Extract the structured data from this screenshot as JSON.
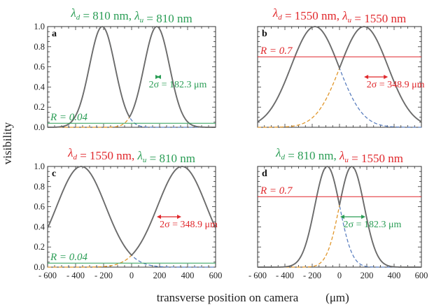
{
  "figure": {
    "ylabel": "visibility",
    "xlabel": "transverse position on camera",
    "xunit": "(μm)",
    "colors": {
      "green": "#2a9d55",
      "red": "#e0272b",
      "blue": "#5b7fbf",
      "orange": "#e0962a",
      "gray": "#6b6b6b"
    }
  },
  "chart_data": [
    {
      "type": "line",
      "panel": "a",
      "title_parts": [
        {
          "text": "λ",
          "sub": "d",
          "color": "green"
        },
        {
          "text": " = 810 nm, ",
          "color": "green"
        },
        {
          "text": "λ",
          "sub": "u",
          "color": "green"
        },
        {
          "text": " = 810 nm",
          "color": "green"
        }
      ],
      "xlim": [
        -600,
        600
      ],
      "ylim": [
        0,
        1.0
      ],
      "yticks": [
        "0.0",
        "0.2",
        "0.4",
        "0.6",
        "0.8",
        "1.0"
      ],
      "xticks": [],
      "R": 0.04,
      "R_label": "R = 0.04",
      "R_color": "green",
      "sigma_um": 91.15,
      "series": [
        {
          "kind": "dashed",
          "color": "blue",
          "center": -210
        },
        {
          "kind": "dashed",
          "color": "orange",
          "center": 180
        },
        {
          "kind": "solid",
          "color": "gray",
          "centers": [
            -210,
            180
          ]
        }
      ],
      "annotation": {
        "text": "2σ = 182.3 μm",
        "color": "green",
        "from": 180,
        "to": 200
      }
    },
    {
      "type": "line",
      "panel": "b",
      "title_parts": [
        {
          "text": "λ",
          "sub": "d",
          "color": "red"
        },
        {
          "text": " = 1550 nm, ",
          "color": "red"
        },
        {
          "text": "λ",
          "sub": "u",
          "color": "red"
        },
        {
          "text": " = 1550 nm",
          "color": "red"
        }
      ],
      "xlim": [
        -600,
        600
      ],
      "ylim": [
        0,
        1.0
      ],
      "yticks": [],
      "xticks": [],
      "R": 0.7,
      "R_label": "R = 0.7",
      "R_color": "red",
      "sigma_um": 174.45,
      "series": [
        {
          "kind": "dashed",
          "color": "blue",
          "center": -180
        },
        {
          "kind": "dashed",
          "color": "orange",
          "center": 180
        },
        {
          "kind": "solid",
          "color": "gray",
          "centers": [
            -180,
            180
          ]
        }
      ],
      "annotation": {
        "text": "2σ = 348.9 μm",
        "color": "red",
        "from": 180,
        "to": 355
      }
    },
    {
      "type": "line",
      "panel": "c",
      "title_parts": [
        {
          "text": "λ",
          "sub": "d",
          "color": "red"
        },
        {
          "text": " = 1550 nm, ",
          "color": "red"
        },
        {
          "text": "λ",
          "sub": "u",
          "color": "green"
        },
        {
          "text": " = 810 nm",
          "color": "green"
        }
      ],
      "xlim": [
        -600,
        600
      ],
      "ylim": [
        0,
        1.0
      ],
      "yticks": [
        "0.0",
        "0.2",
        "0.4",
        "0.6",
        "0.8",
        "1.0"
      ],
      "xticks": [
        "- 600",
        "- 400",
        "- 200",
        "0",
        "200",
        "400",
        "600"
      ],
      "R": 0.04,
      "R_label": "R = 0.04",
      "R_color": "green",
      "sigma_um": 174.45,
      "series": [
        {
          "kind": "dashed",
          "color": "blue",
          "center": -360
        },
        {
          "kind": "dashed",
          "color": "orange",
          "center": 360
        },
        {
          "kind": "solid",
          "color": "gray",
          "centers": [
            -360,
            360
          ]
        }
      ],
      "annotation": {
        "text": "2σ = 348.9 μm",
        "color": "red",
        "from": 180,
        "to": 355
      }
    },
    {
      "type": "line",
      "panel": "d",
      "title_parts": [
        {
          "text": "λ",
          "sub": "d",
          "color": "green"
        },
        {
          "text": " = 810 nm,  ",
          "color": "green"
        },
        {
          "text": "λ",
          "sub": "u",
          "color": "red"
        },
        {
          "text": " = 1550 nm",
          "color": "red"
        }
      ],
      "xlim": [
        -600,
        600
      ],
      "ylim": [
        0,
        1.0
      ],
      "yticks": [],
      "xticks": [
        "- 600",
        "- 400",
        "- 200",
        "0",
        "200",
        "400",
        "600"
      ],
      "R": 0.7,
      "R_label": "R = 0.7",
      "R_color": "red",
      "sigma_um": 91.15,
      "series": [
        {
          "kind": "dashed",
          "color": "blue",
          "center": -90
        },
        {
          "kind": "dashed",
          "color": "orange",
          "center": 90
        },
        {
          "kind": "solid",
          "color": "gray",
          "centers": [
            -90,
            90
          ]
        }
      ],
      "annotation": {
        "text": "2σ = 182.3 μm",
        "color": "green",
        "from": 5,
        "to": 190
      }
    }
  ]
}
